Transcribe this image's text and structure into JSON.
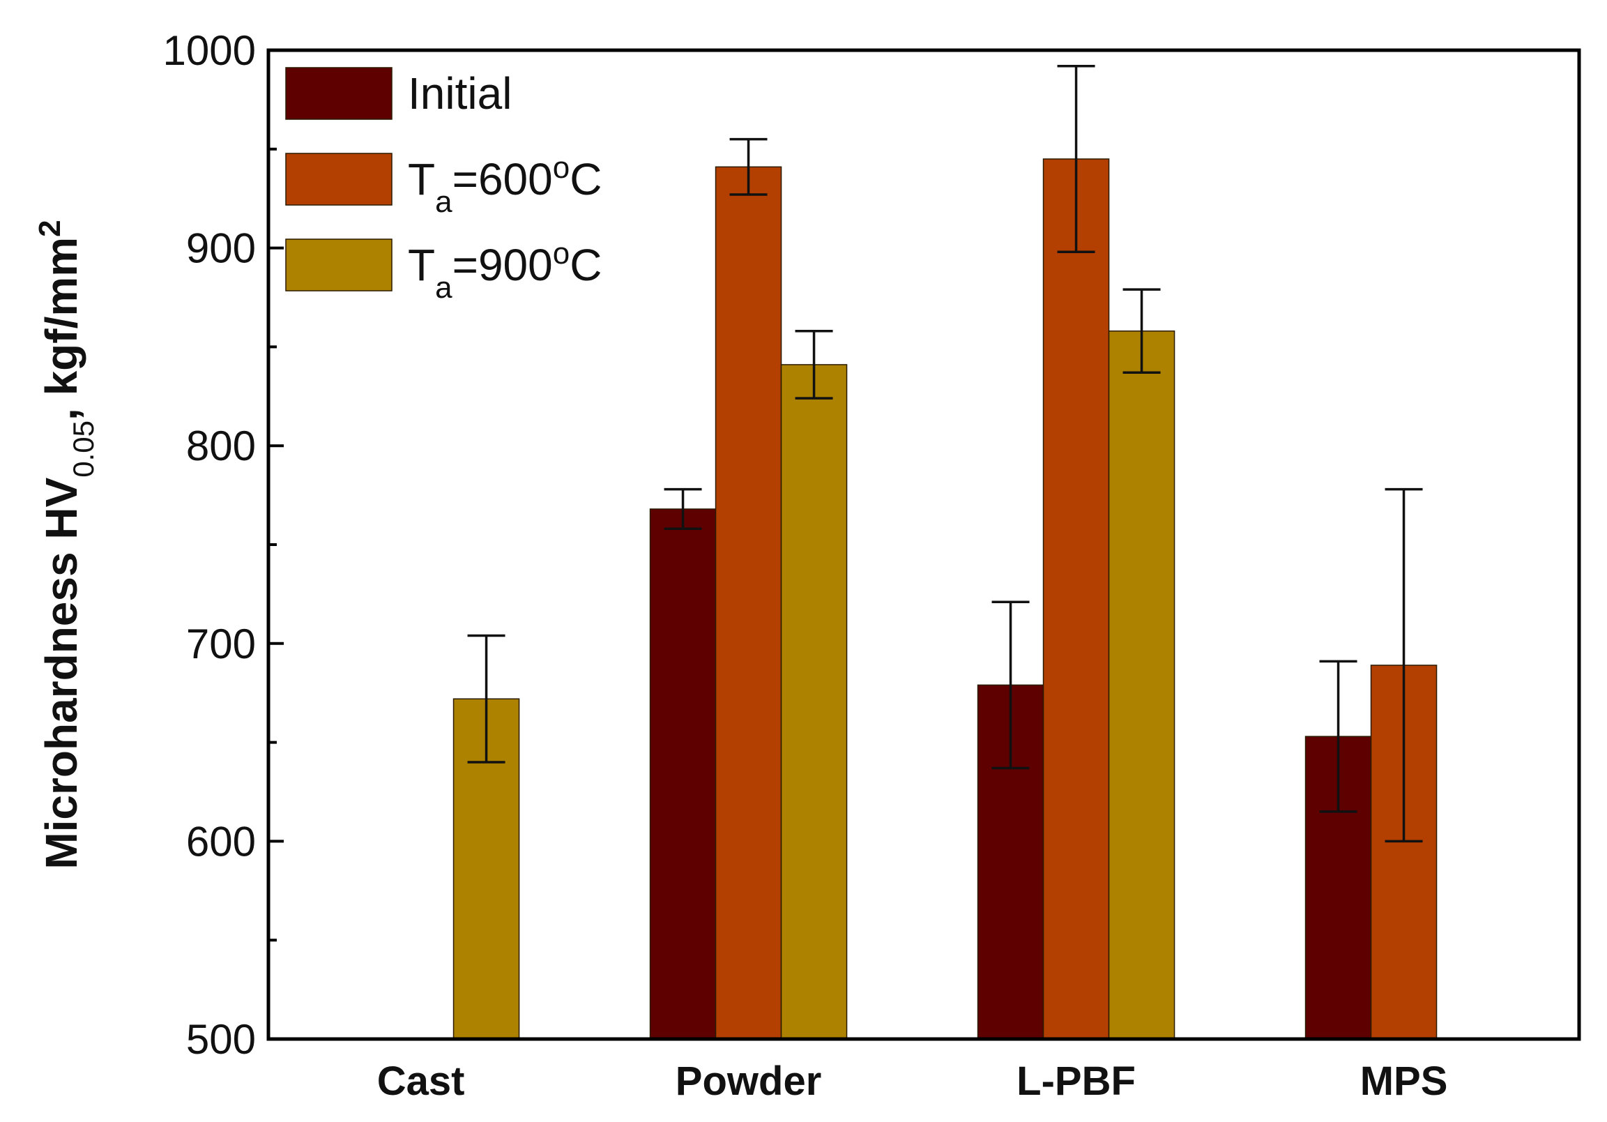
{
  "chart_data": {
    "type": "bar",
    "title": "",
    "xlabel": "",
    "ylabel": {
      "main": "Microhardness HV",
      "sub": "0.05",
      "unit": ", kgf/mm",
      "sup": "2"
    },
    "ylim": [
      500,
      1000
    ],
    "yticks": [
      500,
      600,
      700,
      800,
      900,
      1000
    ],
    "categories": [
      "Cast",
      "Powder",
      "L-PBF",
      "MPS"
    ],
    "series": [
      {
        "name": "Initial",
        "legend": {
          "base": "Initial",
          "sub": "",
          "rest": "",
          "sup": "",
          "end": ""
        },
        "color": "#5e0000",
        "values": [
          null,
          768,
          679,
          653
        ],
        "errors": [
          null,
          10,
          42,
          38
        ]
      },
      {
        "name": "Ta=600oC",
        "legend": {
          "base": "T",
          "sub": "a",
          "rest": "=600",
          "sup": "o",
          "end": "C"
        },
        "color": "#b34000",
        "values": [
          null,
          941,
          945,
          689
        ],
        "errors": [
          null,
          14,
          47,
          89
        ]
      },
      {
        "name": "Ta=900oC",
        "legend": {
          "base": "T",
          "sub": "a",
          "rest": "=900",
          "sup": "o",
          "end": "C"
        },
        "color": "#ad8200",
        "values": [
          672,
          841,
          858,
          null
        ],
        "errors": [
          32,
          17,
          21,
          null
        ]
      }
    ],
    "legend_position": "top-left"
  }
}
